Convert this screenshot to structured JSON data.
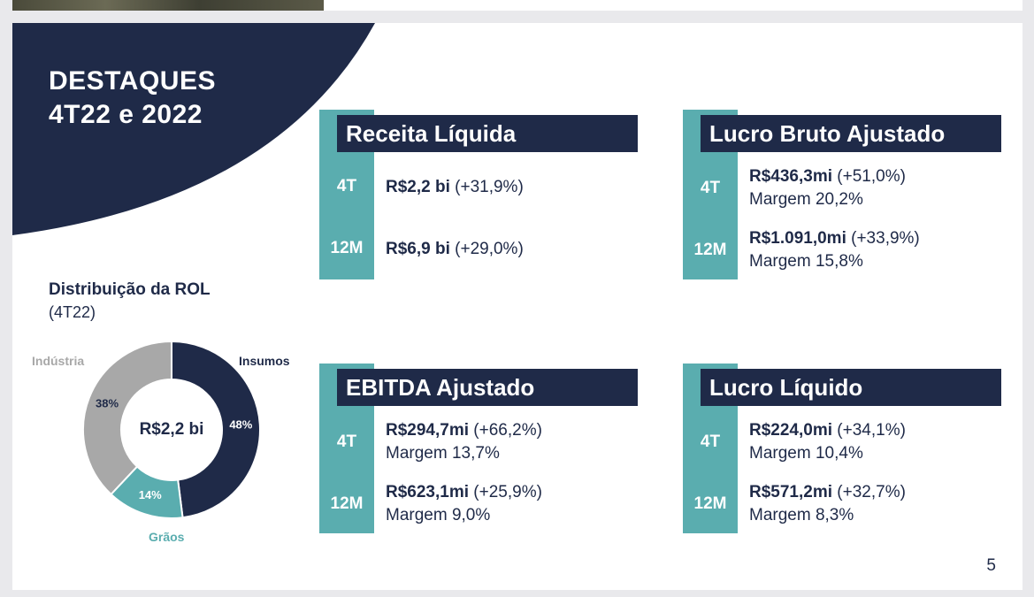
{
  "title": {
    "line1": "DESTAQUES",
    "line2": "4T22 e 2022"
  },
  "colors": {
    "navy": "#1f2a48",
    "teal": "#5aadaf",
    "gray": "#a8a8a8"
  },
  "kpis": {
    "receita": {
      "header": "Receita Líquida",
      "rows": [
        {
          "period": "4T",
          "value": "R$2,2 bi",
          "change": " (+31,9%)"
        },
        {
          "period": "12M",
          "value": "R$6,9 bi",
          "change": " (+29,0%)"
        }
      ]
    },
    "lucro_bruto": {
      "header": "Lucro Bruto Ajustado",
      "rows": [
        {
          "period": "4T",
          "value": "R$436,3mi",
          "change": " (+51,0%)",
          "margin": "Margem 20,2%"
        },
        {
          "period": "12M",
          "value": "R$1.091,0mi",
          "change": " (+33,9%)",
          "margin": "Margem 15,8%"
        }
      ]
    },
    "ebitda": {
      "header": "EBITDA Ajustado",
      "rows": [
        {
          "period": "4T",
          "value": "R$294,7mi",
          "change": " (+66,2%)",
          "margin": "Margem 13,7%"
        },
        {
          "period": "12M",
          "value": "R$623,1mi",
          "change": " (+25,9%)",
          "margin": "Margem 9,0%"
        }
      ]
    },
    "lucro_liquido": {
      "header": "Lucro Líquido",
      "rows": [
        {
          "period": "4T",
          "value": "R$224,0mi",
          "change": " (+34,1%)",
          "margin": "Margem 10,4%"
        },
        {
          "period": "12M",
          "value": "R$571,2mi",
          "change": " (+32,7%)",
          "margin": "Margem 8,3%"
        }
      ]
    }
  },
  "rol": {
    "title": "Distribuição da ROL",
    "subtitle": "(4T22)",
    "center": "R$2,2 bi",
    "segments": [
      {
        "name": "Insumos",
        "pct_label": "48%",
        "value": 48,
        "color": "#1f2a48"
      },
      {
        "name": "Grãos",
        "pct_label": "14%",
        "value": 14,
        "color": "#5aadaf"
      },
      {
        "name": "Indústria",
        "pct_label": "38%",
        "value": 38,
        "color": "#a8a8a8"
      }
    ]
  },
  "page_number": "5"
}
